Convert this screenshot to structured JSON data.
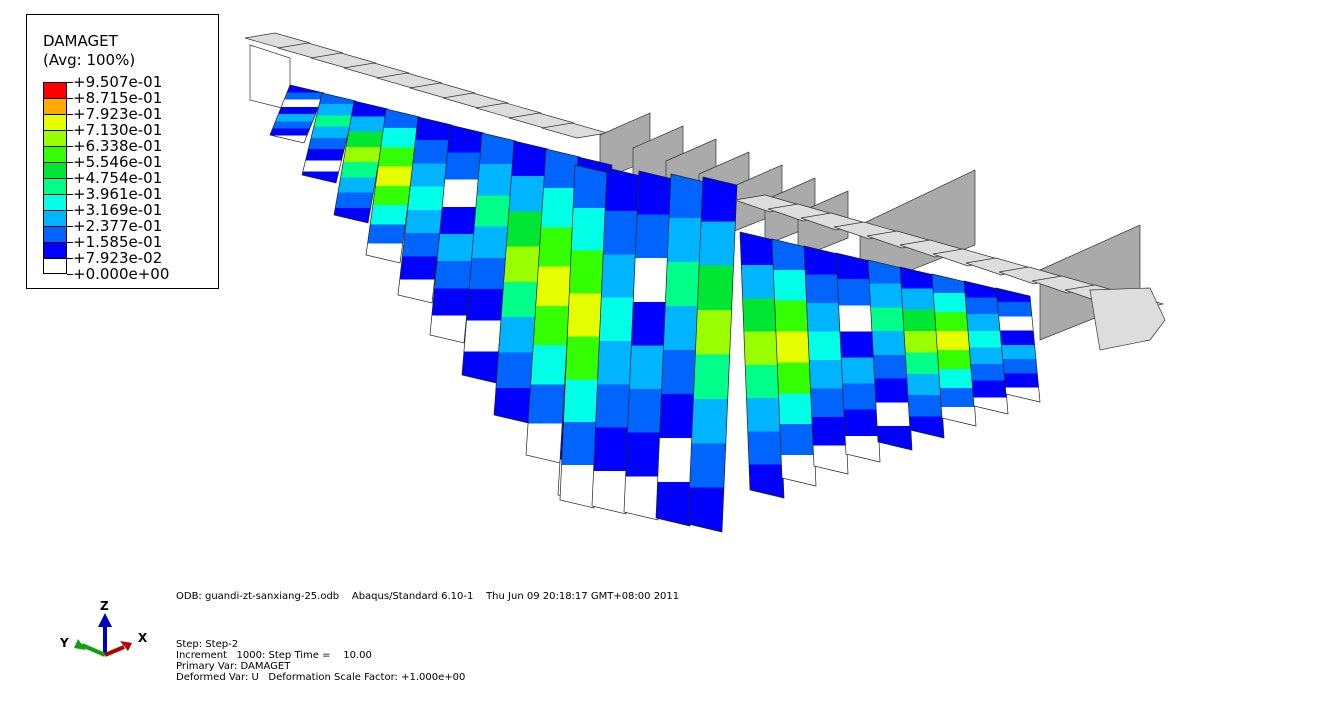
{
  "legend": {
    "title": "DAMAGET",
    "subtitle": "(Avg: 100%)",
    "values": [
      "+9.507e-01",
      "+8.715e-01",
      "+7.923e-01",
      "+7.130e-01",
      "+6.338e-01",
      "+5.546e-01",
      "+4.754e-01",
      "+3.961e-01",
      "+3.169e-01",
      "+2.377e-01",
      "+1.585e-01",
      "+7.923e-02",
      "+0.000e+00"
    ],
    "colors": [
      "#ff0000",
      "#ffaa00",
      "#e6ff00",
      "#99ff00",
      "#33ff00",
      "#00e632",
      "#00ff88",
      "#00ffe6",
      "#00b4ff",
      "#0064ff",
      "#0000ff",
      "#ffffff"
    ]
  },
  "info": {
    "odb_line": "ODB: guandi-zt-sanxiang-25.odb    Abaqus/Standard 6.10-1    Thu Jun 09 20:18:17 GMT+08:00 2011",
    "step": "Step: Step-2",
    "increment": "Increment   1000: Step Time =    10.00",
    "primary_var": "Primary Var: DAMAGET",
    "deformed_var": "Deformed Var: U   Deformation Scale Factor: +1.000e+00"
  },
  "triad": {
    "x_label": "X",
    "y_label": "Y",
    "z_label": "Z",
    "x_color": "#b00000",
    "y_color": "#10a010",
    "z_color": "#0000c0"
  }
}
